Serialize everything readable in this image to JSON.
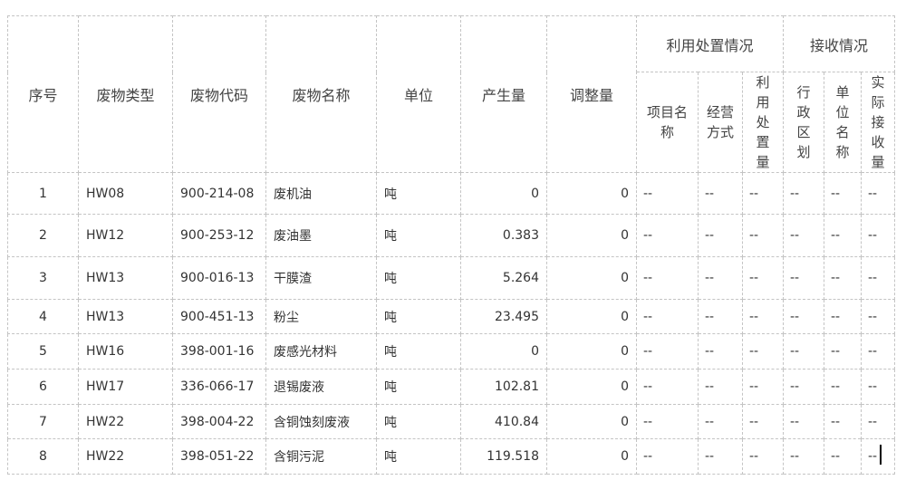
{
  "header": {
    "seq": "序号",
    "type": "废物类型",
    "code": "废物代码",
    "name": "废物名称",
    "unit": "单位",
    "produced": "产生量",
    "adjusted": "调整量",
    "disposal_group": "利用处置情况",
    "receive_group": "接收情况",
    "disposal_cols": [
      "项目名称",
      "经营方式",
      "利用处置量"
    ],
    "receive_cols": [
      "行政区划",
      "单位名称",
      "实际接收量"
    ]
  },
  "rows": [
    {
      "seq": "1",
      "type": "HW08",
      "code": "900-214-08",
      "name": "废机油",
      "unit": "吨",
      "produced": "0",
      "adjusted": "0",
      "rest": [
        "--",
        "--",
        "--",
        "--",
        "--",
        "--"
      ]
    },
    {
      "seq": "2",
      "type": "HW12",
      "code": "900-253-12",
      "name": "废油墨",
      "unit": "吨",
      "produced": "0.383",
      "adjusted": "0",
      "rest": [
        "--",
        "--",
        "--",
        "--",
        "--",
        "--"
      ]
    },
    {
      "seq": "3",
      "type": "HW13",
      "code": "900-016-13",
      "name": "干膜渣",
      "unit": "吨",
      "produced": "5.264",
      "adjusted": "0",
      "rest": [
        "--",
        "--",
        "--",
        "--",
        "--",
        "--"
      ]
    },
    {
      "seq": "4",
      "type": "HW13",
      "code": "900-451-13",
      "name": "粉尘",
      "unit": "吨",
      "produced": "23.495",
      "adjusted": "0",
      "rest": [
        "--",
        "--",
        "--",
        "--",
        "--",
        "--"
      ]
    },
    {
      "seq": "5",
      "type": "HW16",
      "code": "398-001-16",
      "name": "废感光材料",
      "unit": "吨",
      "produced": "0",
      "adjusted": "0",
      "rest": [
        "--",
        "--",
        "--",
        "--",
        "--",
        "--"
      ]
    },
    {
      "seq": "6",
      "type": "HW17",
      "code": "336-066-17",
      "name": "退锡废液",
      "unit": "吨",
      "produced": "102.81",
      "adjusted": "0",
      "rest": [
        "--",
        "--",
        "--",
        "--",
        "--",
        "--"
      ]
    },
    {
      "seq": "7",
      "type": "HW22",
      "code": "398-004-22",
      "name": "含铜蚀刻废液",
      "unit": "吨",
      "produced": "410.84",
      "adjusted": "0",
      "rest": [
        "--",
        "--",
        "--",
        "--",
        "--",
        "--"
      ]
    },
    {
      "seq": "8",
      "type": "HW22",
      "code": "398-051-22",
      "name": "含铜污泥",
      "unit": "吨",
      "produced": "119.518",
      "adjusted": "0",
      "rest": [
        "--",
        "--",
        "--",
        "--",
        "--",
        "--"
      ]
    }
  ]
}
